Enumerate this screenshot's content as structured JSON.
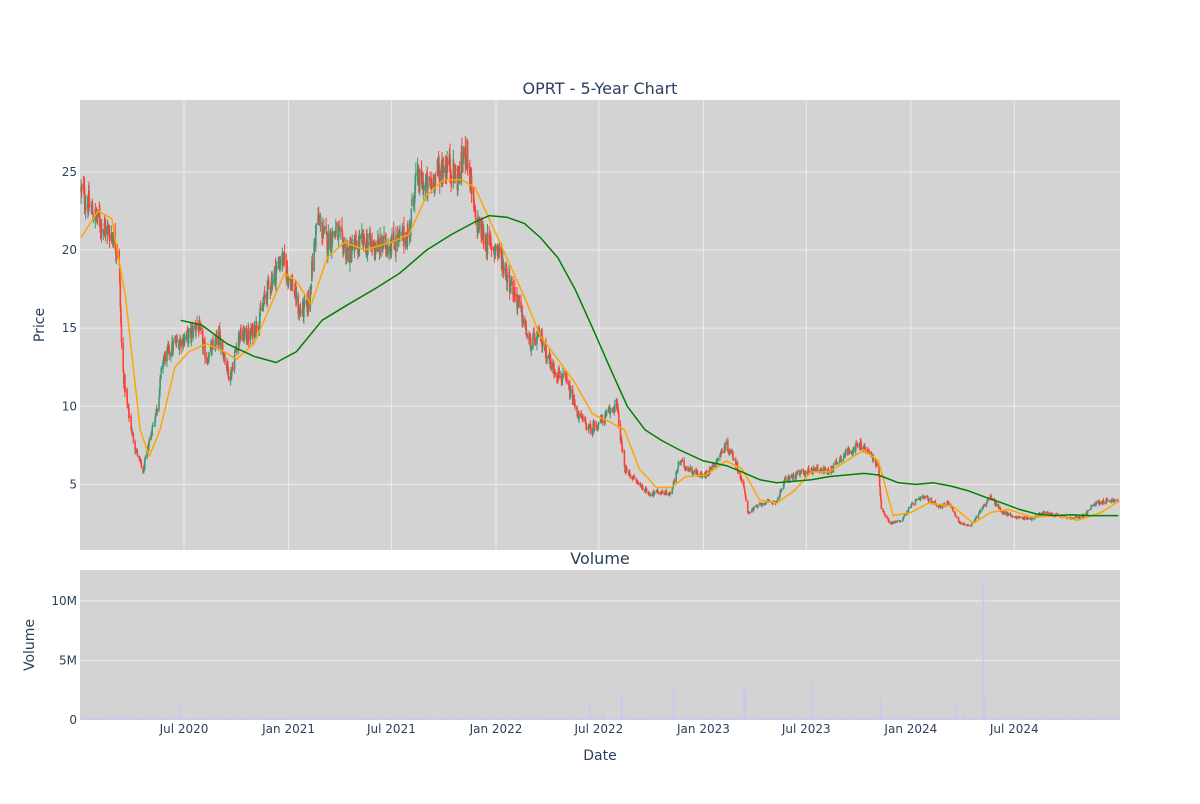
{
  "chart_data": [
    {
      "type": "candlestick",
      "title": "OPRT - 5-Year Chart",
      "ylabel": "Price",
      "xlabel": "",
      "x_range": [
        "2019-12-31",
        "2025-01-03"
      ],
      "ylim": [
        0.8,
        29.6
      ],
      "yticks": [
        5,
        10,
        15,
        20,
        25
      ],
      "grid": true,
      "colors": {
        "background": "#d3d3d3",
        "grid": "#ececec",
        "increasing": "#3d9970",
        "decreasing": "#ff4136",
        "ma_short": "#ffa500",
        "ma_long": "#008000"
      },
      "price_keypoints": [
        [
          "2020-01-02",
          23.8
        ],
        [
          "2020-01-20",
          22.5
        ],
        [
          "2020-02-10",
          21.5
        ],
        [
          "2020-02-25",
          21.0
        ],
        [
          "2020-03-08",
          20.0
        ],
        [
          "2020-03-14",
          12.8
        ],
        [
          "2020-03-22",
          10.2
        ],
        [
          "2020-04-05",
          7.5
        ],
        [
          "2020-04-20",
          5.8
        ],
        [
          "2020-05-01",
          7.8
        ],
        [
          "2020-05-15",
          10.0
        ],
        [
          "2020-05-25",
          13.0
        ],
        [
          "2020-06-15",
          14.0
        ],
        [
          "2020-07-10",
          14.5
        ],
        [
          "2020-07-25",
          15.3
        ],
        [
          "2020-08-10",
          13.0
        ],
        [
          "2020-09-01",
          14.5
        ],
        [
          "2020-09-20",
          11.8
        ],
        [
          "2020-10-05",
          14.5
        ],
        [
          "2020-10-25",
          14.5
        ],
        [
          "2020-11-10",
          15.5
        ],
        [
          "2020-11-25",
          17.5
        ],
        [
          "2020-12-20",
          19.5
        ],
        [
          "2021-01-10",
          17.5
        ],
        [
          "2021-01-20",
          16.0
        ],
        [
          "2021-02-05",
          16.5
        ],
        [
          "2021-02-20",
          22.0
        ],
        [
          "2021-03-10",
          20.5
        ],
        [
          "2021-03-25",
          21.2
        ],
        [
          "2021-04-15",
          19.8
        ],
        [
          "2021-05-10",
          20.5
        ],
        [
          "2021-06-10",
          20.2
        ],
        [
          "2021-07-05",
          20.5
        ],
        [
          "2021-08-01",
          21.0
        ],
        [
          "2021-08-12",
          24.5
        ],
        [
          "2021-09-05",
          24.0
        ],
        [
          "2021-09-20",
          25.0
        ],
        [
          "2021-10-10",
          25.5
        ],
        [
          "2021-10-25",
          24.5
        ],
        [
          "2021-11-10",
          26.5
        ],
        [
          "2021-11-25",
          22.0
        ],
        [
          "2021-12-15",
          20.5
        ],
        [
          "2022-01-05",
          20.0
        ],
        [
          "2022-01-25",
          18.0
        ],
        [
          "2022-02-10",
          16.5
        ],
        [
          "2022-03-01",
          14.0
        ],
        [
          "2022-03-20",
          14.5
        ],
        [
          "2022-04-10",
          12.5
        ],
        [
          "2022-05-05",
          11.5
        ],
        [
          "2022-05-25",
          9.5
        ],
        [
          "2022-06-15",
          8.5
        ],
        [
          "2022-07-10",
          9.2
        ],
        [
          "2022-08-01",
          10.2
        ],
        [
          "2022-08-15",
          6.0
        ],
        [
          "2022-09-10",
          5.0
        ],
        [
          "2022-09-28",
          4.4
        ],
        [
          "2022-10-15",
          4.5
        ],
        [
          "2022-11-05",
          4.4
        ],
        [
          "2022-11-20",
          6.5
        ],
        [
          "2022-12-05",
          6.0
        ],
        [
          "2023-01-01",
          5.5
        ],
        [
          "2023-01-20",
          6.3
        ],
        [
          "2023-02-10",
          7.5
        ],
        [
          "2023-02-25",
          6.6
        ],
        [
          "2023-03-12",
          5.0
        ],
        [
          "2023-03-20",
          3.2
        ],
        [
          "2023-04-15",
          3.8
        ],
        [
          "2023-05-10",
          3.9
        ],
        [
          "2023-05-25",
          5.3
        ],
        [
          "2023-06-20",
          5.7
        ],
        [
          "2023-07-20",
          6.0
        ],
        [
          "2023-08-10",
          5.8
        ],
        [
          "2023-08-25",
          6.5
        ],
        [
          "2023-09-15",
          7.2
        ],
        [
          "2023-10-05",
          7.5
        ],
        [
          "2023-10-25",
          6.8
        ],
        [
          "2023-11-05",
          6.0
        ],
        [
          "2023-11-10",
          3.5
        ],
        [
          "2023-11-25",
          2.5
        ],
        [
          "2023-12-15",
          2.7
        ],
        [
          "2024-01-05",
          3.8
        ],
        [
          "2024-01-25",
          4.2
        ],
        [
          "2024-02-20",
          3.6
        ],
        [
          "2024-03-10",
          3.8
        ],
        [
          "2024-03-25",
          2.6
        ],
        [
          "2024-04-15",
          2.3
        ],
        [
          "2024-05-05",
          3.5
        ],
        [
          "2024-05-20",
          4.2
        ],
        [
          "2024-06-10",
          3.2
        ],
        [
          "2024-07-05",
          2.9
        ],
        [
          "2024-08-01",
          2.8
        ],
        [
          "2024-08-20",
          3.2
        ],
        [
          "2024-09-15",
          3.0
        ],
        [
          "2024-10-10",
          2.8
        ],
        [
          "2024-11-01",
          3.0
        ],
        [
          "2024-11-20",
          3.8
        ],
        [
          "2024-12-15",
          4.0
        ],
        [
          "2024-12-31",
          3.9
        ]
      ],
      "series": [
        {
          "values": [
            [
              "2020-01-02",
              20.8
            ],
            [
              "2020-02-01",
              22.5
            ],
            [
              "2020-02-25",
              22.0
            ],
            [
              "2020-03-20",
              17.0
            ],
            [
              "2020-04-15",
              8.5
            ],
            [
              "2020-05-01",
              6.8
            ],
            [
              "2020-05-20",
              8.5
            ],
            [
              "2020-06-15",
              12.5
            ],
            [
              "2020-07-10",
              13.5
            ],
            [
              "2020-08-10",
              14.0
            ],
            [
              "2020-09-10",
              13.5
            ],
            [
              "2020-10-01",
              13.0
            ],
            [
              "2020-11-01",
              14.0
            ],
            [
              "2020-12-01",
              16.5
            ],
            [
              "2020-12-25",
              18.5
            ],
            [
              "2021-01-15",
              18.0
            ],
            [
              "2021-02-10",
              16.5
            ],
            [
              "2021-03-10",
              19.5
            ],
            [
              "2021-04-10",
              20.5
            ],
            [
              "2021-05-15",
              20.0
            ],
            [
              "2021-07-01",
              20.5
            ],
            [
              "2021-08-01",
              21.0
            ],
            [
              "2021-09-01",
              23.5
            ],
            [
              "2021-10-01",
              24.5
            ],
            [
              "2021-11-01",
              24.5
            ],
            [
              "2021-11-25",
              24.0
            ],
            [
              "2021-12-20",
              22.0
            ],
            [
              "2022-01-20",
              19.5
            ],
            [
              "2022-02-20",
              17.0
            ],
            [
              "2022-03-20",
              14.5
            ],
            [
              "2022-04-20",
              13.0
            ],
            [
              "2022-05-20",
              11.5
            ],
            [
              "2022-06-20",
              9.5
            ],
            [
              "2022-07-20",
              9.0
            ],
            [
              "2022-08-15",
              8.5
            ],
            [
              "2022-09-10",
              6.0
            ],
            [
              "2022-10-10",
              4.8
            ],
            [
              "2022-11-05",
              4.8
            ],
            [
              "2022-12-01",
              5.5
            ],
            [
              "2023-01-05",
              5.6
            ],
            [
              "2023-02-10",
              6.5
            ],
            [
              "2023-03-10",
              6.0
            ],
            [
              "2023-04-10",
              4.0
            ],
            [
              "2023-05-10",
              3.8
            ],
            [
              "2023-06-10",
              4.6
            ],
            [
              "2023-07-10",
              5.8
            ],
            [
              "2023-08-10",
              5.8
            ],
            [
              "2023-09-10",
              6.5
            ],
            [
              "2023-10-10",
              7.2
            ],
            [
              "2023-11-05",
              6.5
            ],
            [
              "2023-12-01",
              3.0
            ],
            [
              "2024-01-01",
              3.2
            ],
            [
              "2024-02-01",
              3.8
            ],
            [
              "2024-03-15",
              3.6
            ],
            [
              "2024-04-20",
              2.5
            ],
            [
              "2024-05-20",
              3.2
            ],
            [
              "2024-06-20",
              3.4
            ],
            [
              "2024-08-01",
              2.9
            ],
            [
              "2024-09-15",
              3.0
            ],
            [
              "2024-10-20",
              2.7
            ],
            [
              "2024-12-01",
              3.2
            ],
            [
              "2024-12-31",
              3.9
            ]
          ]
        },
        {
          "values": [
            [
              "2020-06-25",
              15.5
            ],
            [
              "2020-08-01",
              15.2
            ],
            [
              "2020-09-15",
              14.0
            ],
            [
              "2020-11-01",
              13.2
            ],
            [
              "2020-12-10",
              12.8
            ],
            [
              "2021-01-15",
              13.5
            ],
            [
              "2021-03-01",
              15.5
            ],
            [
              "2021-04-15",
              16.5
            ],
            [
              "2021-06-01",
              17.5
            ],
            [
              "2021-07-15",
              18.5
            ],
            [
              "2021-09-01",
              20.0
            ],
            [
              "2021-10-15",
              21.0
            ],
            [
              "2021-11-25",
              21.8
            ],
            [
              "2021-12-20",
              22.2
            ],
            [
              "2022-01-20",
              22.1
            ],
            [
              "2022-02-20",
              21.7
            ],
            [
              "2022-03-20",
              20.8
            ],
            [
              "2022-04-20",
              19.5
            ],
            [
              "2022-05-20",
              17.5
            ],
            [
              "2022-06-20",
              15.0
            ],
            [
              "2022-07-20",
              12.5
            ],
            [
              "2022-08-20",
              10.0
            ],
            [
              "2022-09-20",
              8.5
            ],
            [
              "2022-10-20",
              7.8
            ],
            [
              "2022-11-20",
              7.2
            ],
            [
              "2023-01-01",
              6.5
            ],
            [
              "2023-02-10",
              6.2
            ],
            [
              "2023-03-10",
              5.8
            ],
            [
              "2023-04-10",
              5.3
            ],
            [
              "2023-05-10",
              5.1
            ],
            [
              "2023-06-10",
              5.2
            ],
            [
              "2023-07-10",
              5.3
            ],
            [
              "2023-08-10",
              5.5
            ],
            [
              "2023-09-10",
              5.6
            ],
            [
              "2023-10-10",
              5.7
            ],
            [
              "2023-11-05",
              5.6
            ],
            [
              "2023-12-10",
              5.1
            ],
            [
              "2024-01-10",
              5.0
            ],
            [
              "2024-02-10",
              5.1
            ],
            [
              "2024-03-10",
              4.9
            ],
            [
              "2024-04-10",
              4.6
            ],
            [
              "2024-05-10",
              4.2
            ],
            [
              "2024-06-10",
              3.8
            ],
            [
              "2024-07-10",
              3.4
            ],
            [
              "2024-08-10",
              3.1
            ],
            [
              "2024-09-10",
              3.0
            ],
            [
              "2024-10-10",
              3.05
            ],
            [
              "2024-11-10",
              3.0
            ],
            [
              "2024-12-31",
              3.0
            ]
          ]
        }
      ]
    },
    {
      "type": "bar",
      "title": "Volume",
      "xlabel": "Date",
      "ylabel": "Volume",
      "ylim": [
        0,
        12600000
      ],
      "yticks": [
        0,
        5000000,
        10000000
      ],
      "ytick_labels": [
        "0",
        "5M",
        "10M"
      ],
      "xticks": [
        "2020-07-01",
        "2021-01-01",
        "2021-07-01",
        "2022-01-01",
        "2022-07-01",
        "2023-01-01",
        "2023-07-01",
        "2024-01-01",
        "2024-07-01"
      ],
      "xtick_labels": [
        "Jul 2020",
        "Jan 2021",
        "Jul 2021",
        "Jan 2022",
        "Jul 2022",
        "Jan 2023",
        "Jul 2023",
        "Jan 2024",
        "Jul 2024"
      ],
      "grid": true,
      "colors": {
        "background": "#d3d3d3",
        "grid": "#ececec",
        "bar": "#c9c9f0"
      },
      "base_volume": 150000,
      "spikes": [
        [
          "2020-03-16",
          400000
        ],
        [
          "2020-03-23",
          500000
        ],
        [
          "2020-06-25",
          1600000
        ],
        [
          "2022-06-15",
          1200000
        ],
        [
          "2022-07-08",
          700000
        ],
        [
          "2022-08-10",
          1900000
        ],
        [
          "2022-11-10",
          2600000
        ],
        [
          "2023-03-14",
          2900000
        ],
        [
          "2023-03-17",
          2300000
        ],
        [
          "2023-07-10",
          3300000
        ],
        [
          "2023-11-09",
          1800000
        ],
        [
          "2024-03-22",
          1300000
        ],
        [
          "2024-05-08",
          11700000
        ],
        [
          "2024-05-10",
          2200000
        ]
      ]
    }
  ]
}
